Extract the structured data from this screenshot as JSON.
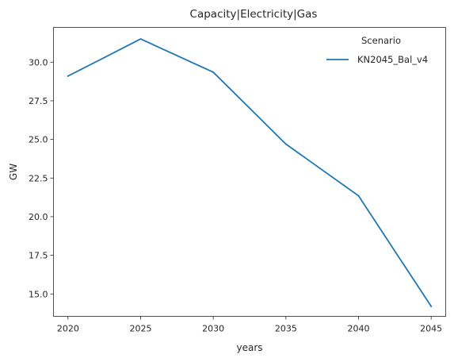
{
  "chart_data": {
    "type": "line",
    "title": "Capacity|Electricity|Gas",
    "xlabel": "years",
    "ylabel": "GW",
    "x": [
      2020,
      2025,
      2030,
      2035,
      2040,
      2045
    ],
    "xticks": [
      2020,
      2025,
      2030,
      2035,
      2040,
      2045
    ],
    "yticks": [
      15.0,
      17.5,
      20.0,
      22.5,
      25.0,
      27.5,
      30.0
    ],
    "ytick_labels": [
      "15.0",
      "17.5",
      "20.0",
      "22.5",
      "25.0",
      "27.5",
      "30.0"
    ],
    "xlim": [
      2019,
      2046
    ],
    "ylim": [
      13.55,
      32.25
    ],
    "grid": false,
    "legend": {
      "title": "Scenario",
      "placement": "top-right"
    },
    "series": [
      {
        "name": "KN2045_Bal_v4",
        "color": "#1f77b4",
        "values": [
          29.1,
          31.5,
          29.35,
          24.7,
          21.35,
          14.2
        ]
      }
    ]
  }
}
